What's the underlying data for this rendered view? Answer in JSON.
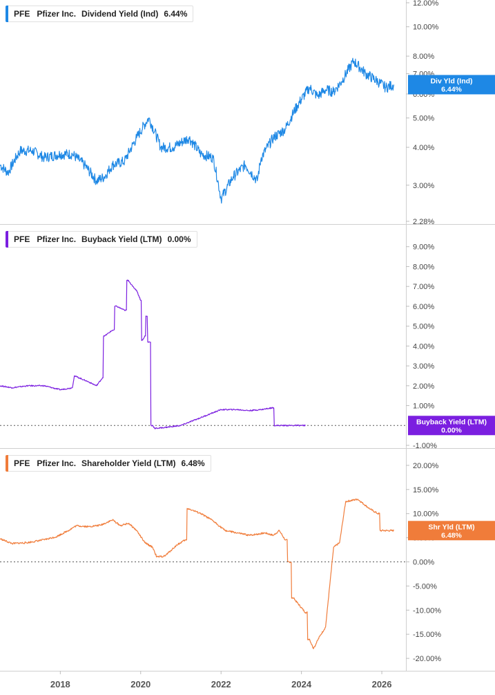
{
  "panels": [
    {
      "symbol": "PFE",
      "company": "Pfizer Inc.",
      "metric": "Dividend Yield (Ind)",
      "value": "6.44%",
      "color": "#1e88e5",
      "scale": "log",
      "ticks": [
        "12.00%",
        "10.00%",
        "8.00%",
        "7.00%",
        "6.00%",
        "5.00%",
        "4.00%",
        "3.00%",
        "2.28%"
      ],
      "tick_values": [
        12,
        10,
        8,
        7,
        6,
        5,
        4,
        3,
        2.28
      ],
      "ylim": [
        2.28,
        12
      ],
      "badge": {
        "line1": "Div Yld (Ind)",
        "line2": "6.44%"
      },
      "zero_line": false,
      "chart_data": {
        "type": "line",
        "x": [
          2016.5,
          2016.7,
          2017.0,
          2017.3,
          2017.6,
          2018.0,
          2018.3,
          2018.6,
          2018.9,
          2019.1,
          2019.3,
          2019.6,
          2019.9,
          2020.2,
          2020.5,
          2020.8,
          2021.2,
          2021.5,
          2021.8,
          2022.0,
          2022.3,
          2022.6,
          2022.9,
          2023.0,
          2023.3,
          2023.6,
          2023.9,
          2024.2,
          2024.4,
          2024.6,
          2024.8,
          2025.0,
          2025.3,
          2025.6,
          2025.9,
          2026.1,
          2026.3
        ],
        "y": [
          3.5,
          3.3,
          3.9,
          3.9,
          3.7,
          3.8,
          3.8,
          3.5,
          3.1,
          3.2,
          3.5,
          3.6,
          4.3,
          5.0,
          4.0,
          4.0,
          4.3,
          3.8,
          3.7,
          2.7,
          3.2,
          3.5,
          3.1,
          3.7,
          4.3,
          4.6,
          5.5,
          6.3,
          5.9,
          6.2,
          6.1,
          6.6,
          7.7,
          7.0,
          6.6,
          6.3,
          6.44
        ]
      }
    },
    {
      "symbol": "PFE",
      "company": "Pfizer Inc.",
      "metric": "Buyback Yield (LTM)",
      "value": "0.00%",
      "color": "#7b1fe0",
      "scale": "linear",
      "ticks": [
        "9.00%",
        "8.00%",
        "7.00%",
        "6.00%",
        "5.00%",
        "4.00%",
        "3.00%",
        "2.00%",
        "1.00%",
        "-1.00%"
      ],
      "tick_values": [
        9,
        8,
        7,
        6,
        5,
        4,
        3,
        2,
        1,
        -1
      ],
      "ylim": [
        -1.0,
        10.0
      ],
      "badge": {
        "line1": "Buyback Yield (LTM)",
        "line2": "0.00%"
      },
      "zero_line": true,
      "chart_data": {
        "type": "line",
        "x": [
          2016.5,
          2016.8,
          2017.2,
          2017.6,
          2018.0,
          2018.3,
          2018.35,
          2018.7,
          2018.9,
          2019.05,
          2019.1,
          2019.3,
          2019.4,
          2019.6,
          2019.7,
          2019.8,
          2019.9,
          2020.0,
          2020.05,
          2020.1,
          2020.15,
          2020.2,
          2020.3,
          2020.35,
          2020.6,
          2021.0,
          2021.5,
          2022.0,
          2022.4,
          2022.7,
          2023.0,
          2023.3,
          2023.35,
          2024.1
        ],
        "y": [
          2.0,
          1.9,
          2.0,
          2.0,
          1.8,
          1.9,
          2.5,
          2.2,
          2.0,
          2.4,
          4.5,
          4.8,
          6.0,
          5.8,
          7.3,
          7.0,
          6.8,
          6.3,
          4.3,
          4.5,
          5.5,
          4.2,
          0.0,
          -0.15,
          -0.1,
          0.0,
          0.4,
          0.8,
          0.8,
          0.75,
          0.8,
          0.9,
          0.0,
          0.0
        ]
      }
    },
    {
      "symbol": "PFE",
      "company": "Pfizer Inc.",
      "metric": "Shareholder Yield (LTM)",
      "value": "6.48%",
      "color": "#f07c3a",
      "scale": "linear",
      "ticks": [
        "20.00%",
        "15.00%",
        "10.00%",
        "5.00%",
        "0.00%",
        "-5.00%",
        "-10.00%",
        "-15.00%",
        "-20.00%"
      ],
      "tick_values": [
        20,
        15,
        10,
        5,
        0,
        -5,
        -10,
        -15,
        -20
      ],
      "ylim": [
        -22,
        23
      ],
      "badge": {
        "line1": "Shr Yld (LTM)",
        "line2": "6.48%"
      },
      "zero_line": true,
      "chart_data": {
        "type": "line",
        "x": [
          2016.5,
          2016.8,
          2017.2,
          2017.6,
          2017.9,
          2018.2,
          2018.4,
          2018.7,
          2019.0,
          2019.3,
          2019.5,
          2019.7,
          2019.9,
          2020.1,
          2020.3,
          2020.4,
          2020.6,
          2020.9,
          2021.1,
          2021.2,
          2021.5,
          2021.8,
          2022.1,
          2022.4,
          2022.7,
          2023.1,
          2023.3,
          2023.45,
          2023.6,
          2023.7,
          2023.8,
          2024.1,
          2024.2,
          2024.3,
          2024.45,
          2024.6,
          2024.8,
          2024.95,
          2025.1,
          2025.4,
          2025.7,
          2025.9,
          2026.0,
          2026.3
        ],
        "y": [
          4.8,
          3.8,
          4.0,
          4.6,
          5.2,
          6.5,
          7.5,
          7.3,
          7.6,
          8.7,
          7.5,
          8.0,
          6.5,
          4.0,
          3.0,
          1.0,
          1.2,
          3.5,
          4.5,
          11.0,
          10.0,
          8.5,
          6.5,
          6.0,
          5.5,
          6.0,
          5.5,
          6.5,
          4.5,
          0.0,
          -7.5,
          -10.5,
          -16.0,
          -18.0,
          -15.5,
          -13.5,
          3.0,
          4.0,
          12.5,
          13.0,
          11.0,
          10.0,
          6.5,
          6.48
        ]
      }
    }
  ],
  "x_axis": {
    "ticks": [
      "2018",
      "2020",
      "2022",
      "2024",
      "2026"
    ],
    "tick_values": [
      2018,
      2020,
      2022,
      2024,
      2026
    ],
    "xlim": [
      2016.5,
      2026.6
    ]
  }
}
